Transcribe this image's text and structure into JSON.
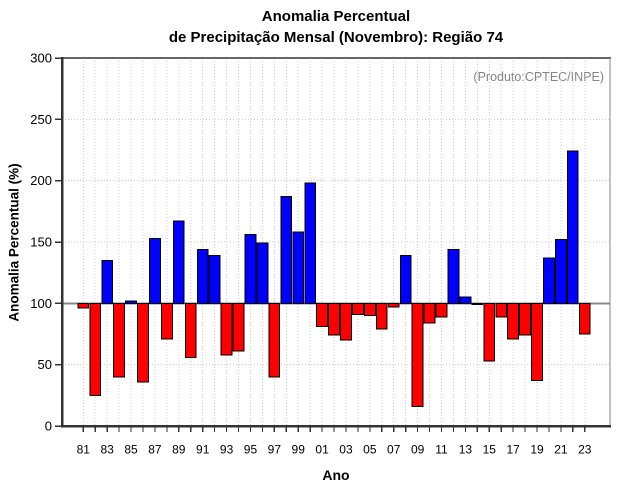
{
  "chart_data": {
    "type": "bar",
    "title_lines": [
      "Anomalia Percentual",
      "de Precipitação Mensal (Novembro): Região 74"
    ],
    "annotation": "(Produto:CPTEC/INPE)",
    "xlabel": "Ano",
    "ylabel": "Anomalia Percentual (%)",
    "ylim": [
      0,
      300
    ],
    "yticks": [
      0,
      50,
      100,
      150,
      200,
      250,
      300
    ],
    "baseline": 100,
    "x_labeled_every": 2,
    "grid": "dotted, vertical line per year and horizontal line per 50 units",
    "legend_position": "none",
    "colors": {
      "above_baseline": "#0000ff",
      "below_baseline": "#ff0000",
      "bar_outline": "#000000",
      "baseline_line": "#888888",
      "grid": "#cfcfcf",
      "axis": "#333333",
      "annotation_text": "#858585"
    },
    "categories": [
      "81",
      "82",
      "83",
      "84",
      "85",
      "86",
      "87",
      "88",
      "89",
      "90",
      "91",
      "92",
      "93",
      "94",
      "95",
      "96",
      "97",
      "98",
      "99",
      "00",
      "01",
      "02",
      "03",
      "04",
      "05",
      "06",
      "07",
      "08",
      "09",
      "10",
      "11",
      "12",
      "13",
      "14",
      "15",
      "16",
      "17",
      "18",
      "19",
      "20",
      "21",
      "22",
      "23"
    ],
    "values": [
      96,
      25,
      135,
      40,
      102,
      36,
      153,
      71,
      167,
      56,
      144,
      139,
      58,
      61,
      156,
      149,
      40,
      187,
      158,
      198,
      81,
      74,
      70,
      91,
      90,
      79,
      97,
      139,
      16,
      84,
      89,
      144,
      105,
      100,
      53,
      89,
      71,
      74,
      37,
      137,
      152,
      224,
      75
    ]
  }
}
